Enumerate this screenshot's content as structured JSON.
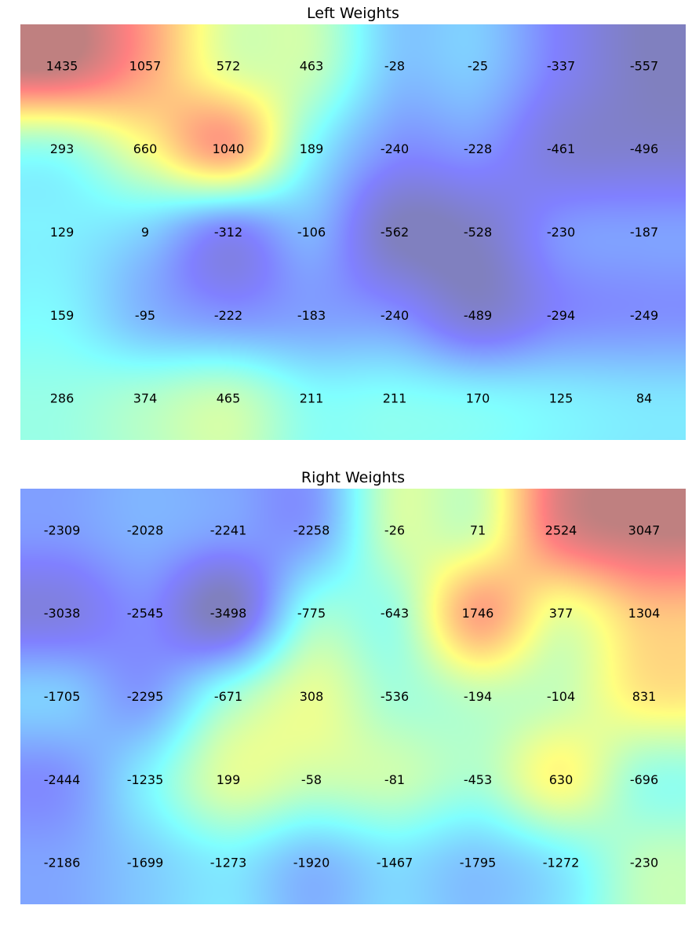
{
  "chart_data": [
    {
      "type": "heatmap",
      "title": "Left Weights",
      "rows": 5,
      "cols": 8,
      "colormap": "jet",
      "interpolation": "bicubic",
      "alpha": 0.5,
      "values": [
        [
          1435,
          1057,
          572,
          463,
          -28,
          -25,
          -337,
          -557
        ],
        [
          293,
          660,
          1040,
          189,
          -240,
          -228,
          -461,
          -496
        ],
        [
          129,
          9,
          -312,
          -106,
          -562,
          -528,
          -230,
          -187
        ],
        [
          159,
          -95,
          -222,
          -183,
          -240,
          -489,
          -294,
          -249
        ],
        [
          286,
          374,
          465,
          211,
          211,
          170,
          125,
          84
        ]
      ],
      "value_range": [
        -562,
        1435
      ],
      "axes_visible": false
    },
    {
      "type": "heatmap",
      "title": "Right Weights",
      "rows": 5,
      "cols": 8,
      "colormap": "jet",
      "interpolation": "bicubic",
      "alpha": 0.5,
      "values": [
        [
          -2309,
          -2028,
          -2241,
          -2258,
          -26,
          71,
          2524,
          3047
        ],
        [
          -3038,
          -2545,
          -3498,
          -775,
          -643,
          1746,
          377,
          1304
        ],
        [
          -1705,
          -2295,
          -671,
          308,
          -536,
          -194,
          -104,
          831
        ],
        [
          -2444,
          -1235,
          199,
          -58,
          -81,
          -453,
          630,
          -696
        ],
        [
          -2186,
          -1699,
          -1273,
          -1920,
          -1467,
          -1795,
          -1272,
          -230
        ]
      ],
      "value_range": [
        -3498,
        3047
      ],
      "axes_visible": false
    }
  ]
}
